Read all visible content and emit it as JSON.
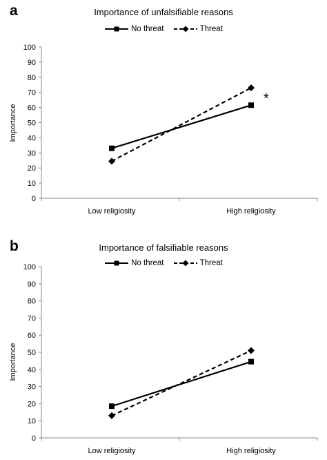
{
  "chart_data": [
    {
      "type": "line",
      "panel_label": "a",
      "title": "Importance of unfalsifiable reasons",
      "xlabel": "",
      "ylabel": "Importance",
      "categories": [
        "Low religiosity",
        "High religiosity"
      ],
      "ylim": [
        0,
        100
      ],
      "yticks": [
        0,
        10,
        20,
        30,
        40,
        50,
        60,
        70,
        80,
        90,
        100
      ],
      "legend_position": "top-center",
      "grid": false,
      "series": [
        {
          "name": "No threat",
          "values": [
            33,
            61.5
          ],
          "marker": "square",
          "line_style": "solid"
        },
        {
          "name": "Threat",
          "values": [
            24.5,
            73
          ],
          "marker": "diamond",
          "line_style": "dashed"
        }
      ],
      "annotation": "*"
    },
    {
      "type": "line",
      "panel_label": "b",
      "title": "Importance of falsifiable reasons",
      "xlabel": "",
      "ylabel": "Importance",
      "categories": [
        "Low religiosity",
        "High religiosity"
      ],
      "ylim": [
        0,
        100
      ],
      "yticks": [
        0,
        10,
        20,
        30,
        40,
        50,
        60,
        70,
        80,
        90,
        100
      ],
      "legend_position": "top-center",
      "grid": false,
      "series": [
        {
          "name": "No threat",
          "values": [
            18.5,
            44.5
          ],
          "marker": "square",
          "line_style": "solid"
        },
        {
          "name": "Threat",
          "values": [
            13,
            51
          ],
          "marker": "diamond",
          "line_style": "dashed"
        }
      ],
      "annotation": ""
    }
  ]
}
